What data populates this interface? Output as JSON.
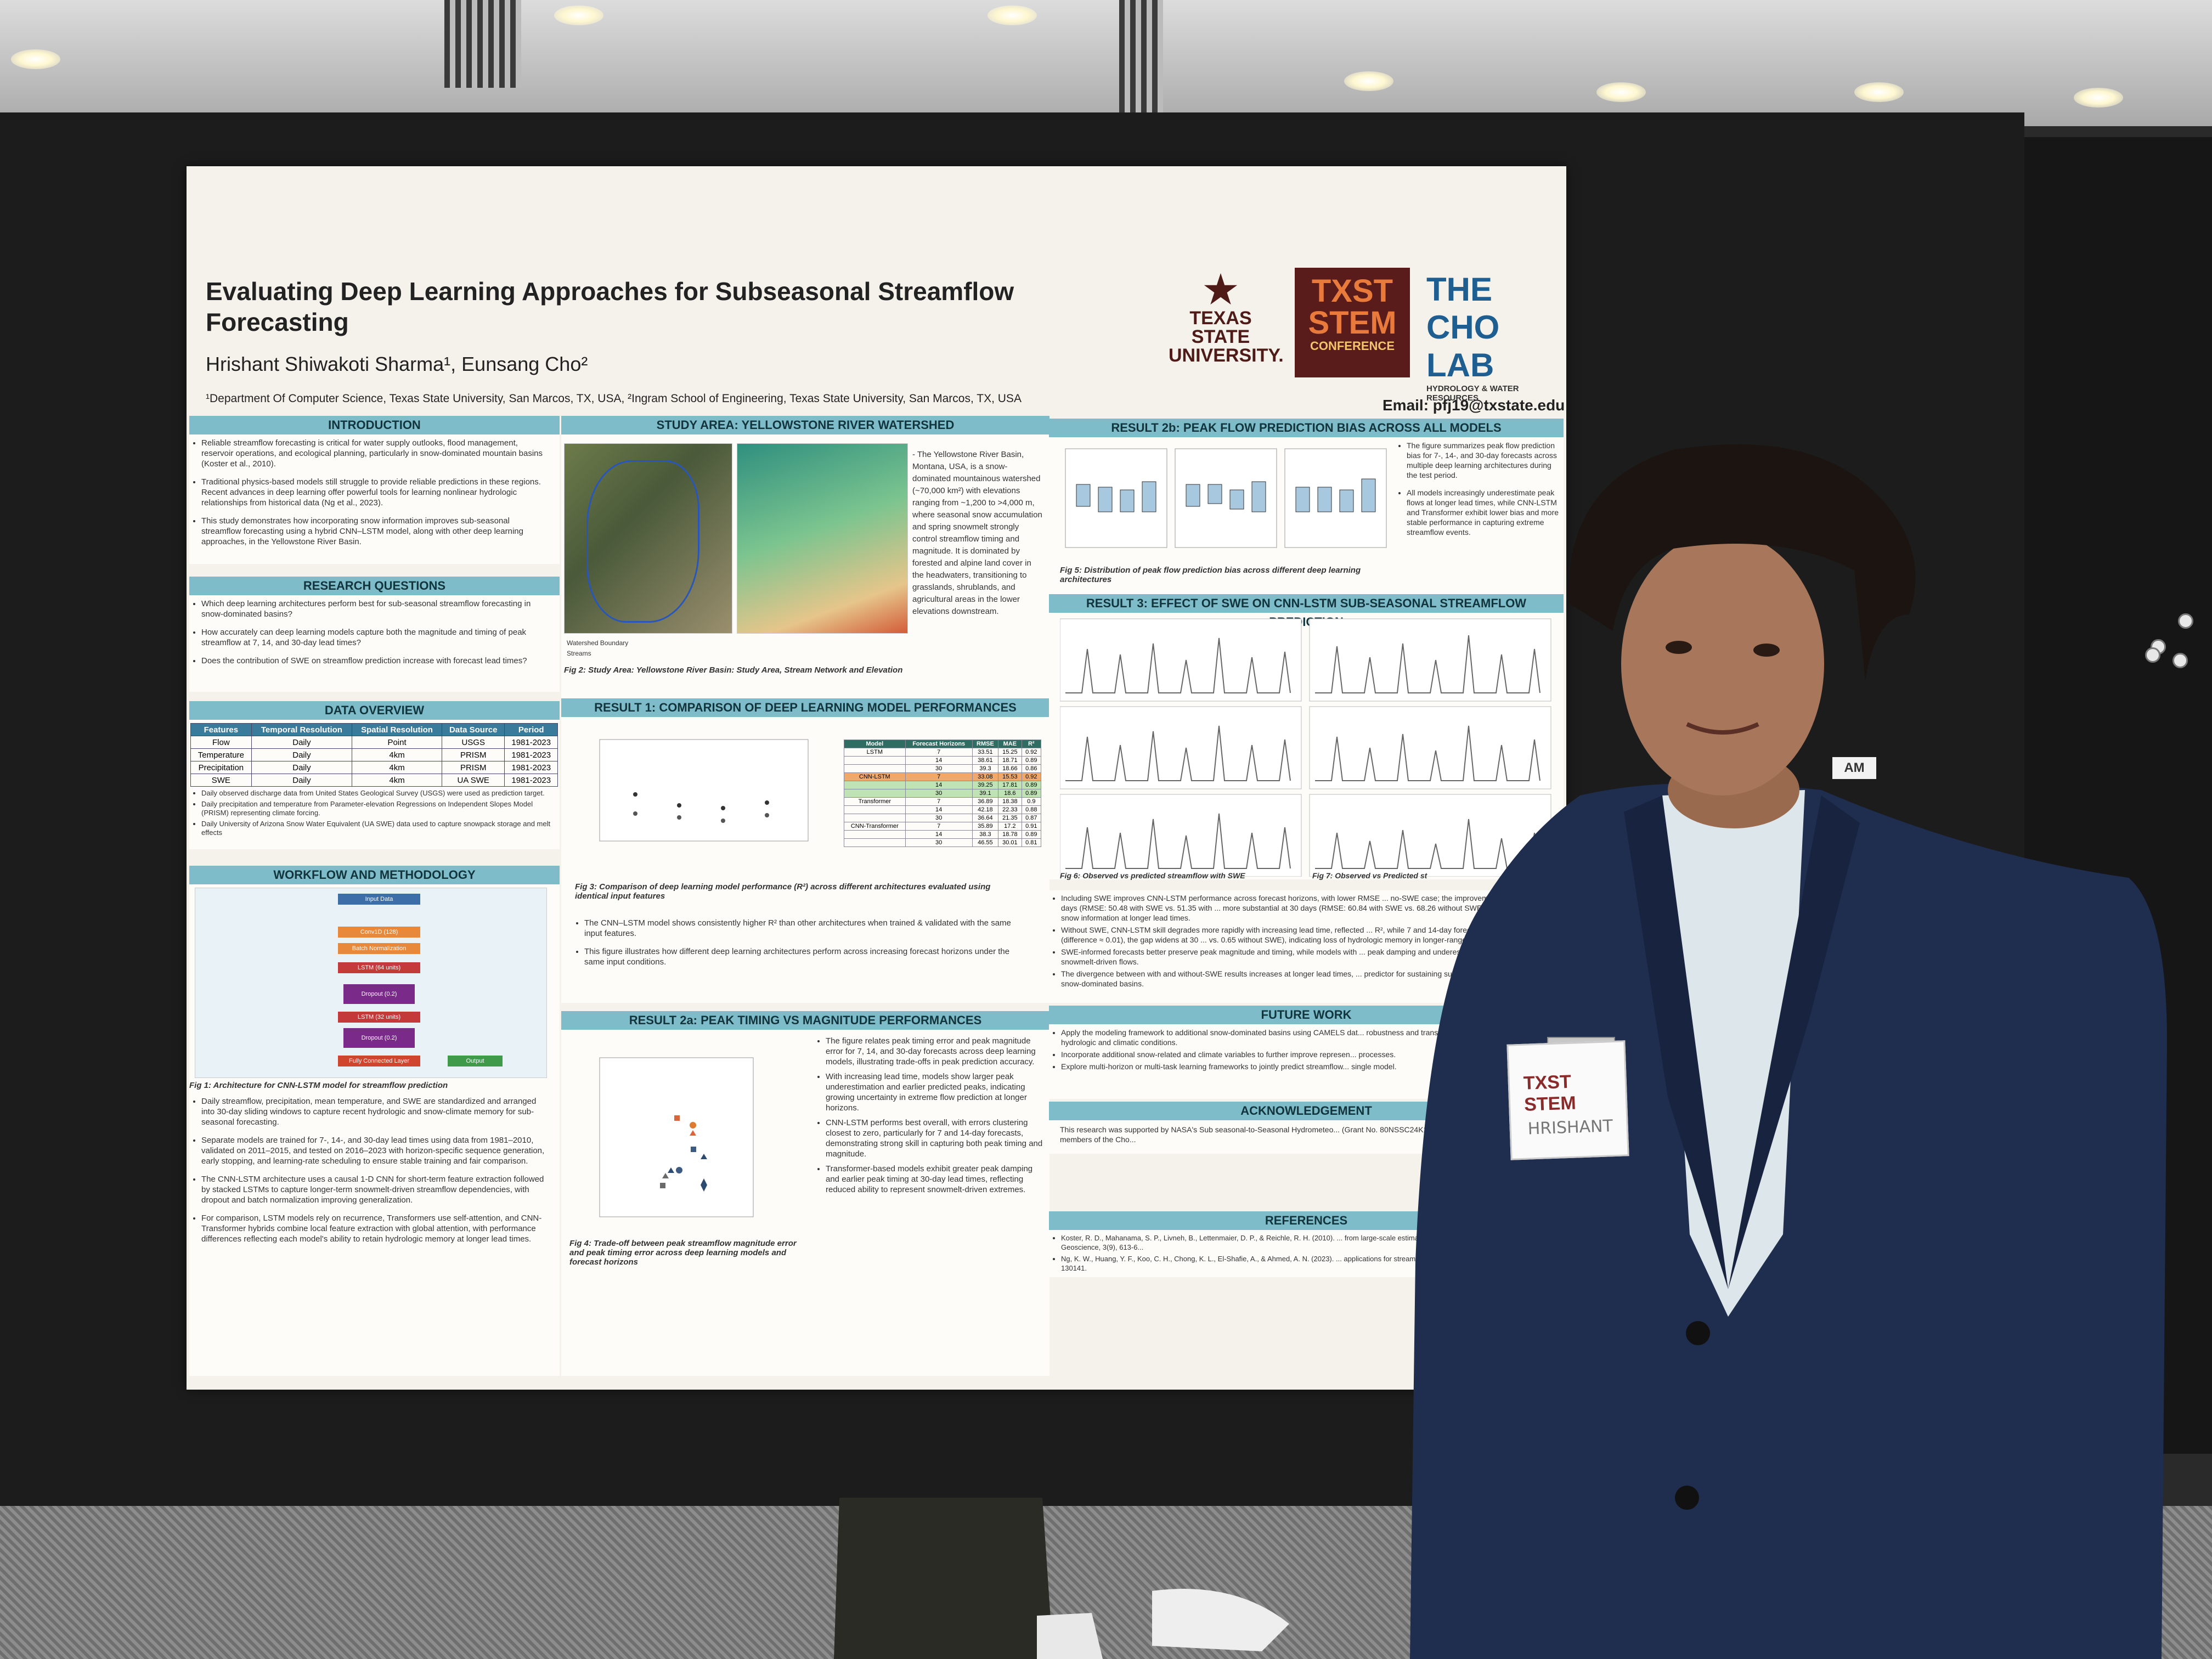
{
  "poster": {
    "title": "Evaluating Deep Learning Approaches for Subseasonal Streamflow Forecasting",
    "authors": "Hrishant Shiwakoti Sharma¹, Eunsang Cho²",
    "affiliations": "¹Department Of Computer Science, Texas State University, San Marcos, TX, USA, ²Ingram School of Engineering, Texas State University, San Marcos, TX, USA",
    "email": "Email: pfj19@txstate.edu",
    "logos": {
      "texas_state": "TEXAS STATE UNIVERSITY.",
      "stem": "TXST STEM",
      "stem_sub": "CONFERENCE",
      "cho_lab": "THE CHO LAB",
      "cho_sub": "HYDROLOGY & WATER RESOURCES"
    },
    "sections": {
      "introduction": {
        "heading": "INTRODUCTION",
        "bullets": [
          "Reliable streamflow forecasting is critical for water supply outlooks, flood management, reservoir operations, and ecological planning, particularly in snow-dominated mountain basins (Koster et al., 2010).",
          "Traditional physics-based models still struggle to provide reliable predictions in these regions. Recent advances in deep learning offer powerful tools for learning nonlinear hydrologic relationships from historical data (Ng et al., 2023).",
          "This study demonstrates how incorporating snow information improves sub-seasonal streamflow forecasting using a hybrid CNN–LSTM model, along with other deep learning approaches, in the Yellowstone River Basin."
        ]
      },
      "research_questions": {
        "heading": "RESEARCH QUESTIONS",
        "bullets": [
          "Which deep learning architectures perform best for sub-seasonal streamflow forecasting in snow-dominated basins?",
          "How accurately can deep learning models capture both the magnitude and timing of peak streamflow at 7, 14, and 30-day lead times?",
          "Does the contribution of SWE on streamflow prediction increase with forecast lead times?"
        ]
      },
      "data_overview": {
        "heading": "DATA OVERVIEW",
        "columns": [
          "Features",
          "Temporal Resolution",
          "Spatial Resolution",
          "Data Source",
          "Period"
        ],
        "rows": [
          [
            "Flow",
            "Daily",
            "Point",
            "USGS",
            "1981-2023"
          ],
          [
            "Temperature",
            "Daily",
            "4km",
            "PRISM",
            "1981-2023"
          ],
          [
            "Precipitation",
            "Daily",
            "4km",
            "PRISM",
            "1981-2023"
          ],
          [
            "SWE",
            "Daily",
            "4km",
            "UA SWE",
            "1981-2023"
          ]
        ],
        "bullets": [
          "Daily observed discharge data from United States Geological Survey (USGS) were used as prediction target.",
          "Daily precipitation and temperature from Parameter-elevation Regressions on Independent Slopes Model (PRISM) representing climate forcing.",
          "Daily University of Arizona Snow Water Equivalent (UA SWE) data used to capture snowpack storage and melt effects"
        ]
      },
      "workflow": {
        "heading": "WORKFLOW AND METHODOLOGY",
        "blocks": [
          "Input Data",
          "Conv1D (128)",
          "Batch Normalization",
          "LSTM (64 units)",
          "Dropout (0.2)",
          "LSTM (32 units)",
          "Dropout (0.2)",
          "Fully Connected Layer",
          "Output"
        ],
        "caption": "Fig 1: Architecture for CNN-LSTM model for streamflow prediction",
        "bullets": [
          "Daily streamflow, precipitation, mean temperature, and SWE are standardized and arranged into 30-day sliding windows to capture recent hydrologic and snow-climate memory for sub-seasonal forecasting.",
          "Separate models are trained for 7-, 14-, and 30-day lead times using data from 1981–2010, validated on 2011–2015, and tested on 2016–2023 with horizon-specific sequence generation, early stopping, and learning-rate scheduling to ensure stable training and fair comparison.",
          "The CNN-LSTM architecture uses a causal 1-D CNN for short-term feature extraction followed by stacked LSTMs to capture longer-term snowmelt-driven streamflow dependencies, with dropout and batch normalization improving generalization.",
          "For comparison, LSTM models rely on recurrence, Transformers use self-attention, and CNN-Transformer hybrids combine local feature extraction with global attention, with performance differences reflecting each model's ability to retain hydrologic memory at longer lead times."
        ]
      },
      "study_area": {
        "heading": "STUDY AREA: YELLOWSTONE RIVER WATERSHED",
        "text": "- The Yellowstone River Basin, Montana, USA, is a snow-dominated mountainous watershed (~70,000 km²) with elevations ranging from ~1,200 to >4,000 m, where seasonal snow accumulation and spring snowmelt strongly control streamflow timing and magnitude. It is dominated by forested and alpine land cover in the headwaters, transitioning to grasslands, shrublands, and agricultural areas in the lower elevations downstream.",
        "legend": [
          "Watershed Boundary",
          "Streams"
        ],
        "caption": "Fig 2: Study Area: Yellowstone River Basin: Study Area, Stream Network and Elevation"
      },
      "result1": {
        "heading": "RESULT 1: COMPARISON OF DEEP LEARNING MODEL PERFORMANCES",
        "caption": "Fig 3: Comparison of deep learning model performance (R²) across different architectures evaluated using identical input features",
        "bullets": [
          "The CNN–LSTM model shows consistently higher R² than other architectures when trained & validated with the same input features.",
          "This figure illustrates how different deep learning architectures perform across increasing forecast horizons under the same input conditions."
        ]
      },
      "result2a": {
        "heading": "RESULT 2a: PEAK TIMING VS MAGNITUDE PERFORMANCES",
        "caption": "Fig 4: Trade-off between peak streamflow magnitude error and peak timing error across deep learning models and forecast horizons",
        "bullets": [
          "The figure relates peak timing error and peak magnitude error for 7, 14, and 30-day forecasts across deep learning models, illustrating trade-offs in peak prediction accuracy.",
          "With increasing lead time, models show larger peak underestimation and earlier predicted peaks, indicating growing uncertainty in extreme flow prediction at longer horizons.",
          "CNN-LSTM performs best overall, with errors clustering closest to zero, particularly for 7 and 14-day forecasts, demonstrating strong skill in capturing both peak timing and magnitude.",
          "Transformer-based models exhibit greater peak damping and earlier peak timing at 30-day lead times, reflecting reduced ability to represent snowmelt-driven extremes."
        ]
      },
      "result2b": {
        "heading": "RESULT 2b: PEAK FLOW PREDICTION BIAS ACROSS ALL MODELS",
        "caption": "Fig 5: Distribution of peak flow prediction bias across different deep learning architectures",
        "bullets": [
          "The figure summarizes peak flow prediction bias for 7-, 14-, and 30-day forecasts across multiple deep learning architectures during the test period.",
          "All models increasingly underestimate peak flows at longer lead times, while CNN-LSTM and Transformer exhibit lower bias and more stable performance in capturing extreme streamflow events."
        ]
      },
      "result3": {
        "heading": "RESULT 3: EFFECT OF SWE ON CNN-LSTM SUB-SEASONAL STREAMFLOW PREDICTION",
        "caption_left": "Fig 6: Observed vs predicted streamflow with SWE",
        "caption_right": "Fig 7: Observed vs Predicted st",
        "bullets": [
          "Including SWE improves CNN-LSTM performance across forecast horizons, with lower RMSE ... no-SWE case; the improvement is modest at 14 days (RMSE: 50.48 with SWE vs. 51.35 with ... more substantial at 30 days (RMSE: 60.84 with SWE vs. 68.26 without SWE), highlighting the ... snow information at longer lead times.",
          "Without SWE, CNN-LSTM skill degrades more rapidly with increasing lead time, reflected ... R², while 7 and 14-day forecasts show similar R² (difference ≈ 0.01), the gap widens at 30 ... vs. 0.65 without SWE), indicating loss of hydrologic memory in longer-range forecasts.",
          "SWE-informed forecasts better preserve peak magnitude and timing, while models with ... peak damping and underestimation of extreme snowmelt-driven flows.",
          "The divergence between with and without-SWE results increases at longer lead times, ... predictor for sustaining sub-seasonal forecast skill in snow-dominated basins."
        ]
      },
      "future_work": {
        "heading": "FUTURE WORK",
        "bullets": [
          "Apply the modeling framework to additional snow-dominated basins using CAMELS dat... robustness and transferability across diverse hydrologic and climatic conditions.",
          "Incorporate additional snow-related and climate variables to further improve represen... processes.",
          "Explore multi-horizon or multi-task learning frameworks to jointly predict streamflow... single model."
        ]
      },
      "acknowledgement": {
        "heading": "ACKNOWLEDGEMENT",
        "text": "This research was supported by NASA's Sub seasonal-to-Seasonal Hydrometeo... (Grant No. 80NSSC24K1278), with feedback from student members of the Cho..."
      },
      "references": {
        "heading": "REFERENCES",
        "items": [
          "Koster, R. D., Mahanama, S. P., Livneh, B., Lettenmaier, D. P., & Reichle, R. H. (2010). ... from large-scale estimates of soil moisture and snow. Nature Geoscience, 3(9), 613-6...",
          "Ng, K. W., Huang, Y. F., Koo, C. H., Chong, K. L., El-Shafie, A., & Ahmed, A. N. (2023). ... applications for streamflow forecasting. Journal of Hydrology, 625, 130141."
        ]
      }
    },
    "results_table": {
      "columns": [
        "Model",
        "Forecast Horizons",
        "RMSE",
        "MAE",
        "R²"
      ],
      "rows": [
        [
          "LSTM",
          "7",
          "33.51",
          "15.25",
          "0.92"
        ],
        [
          "",
          "14",
          "38.61",
          "18.71",
          "0.89"
        ],
        [
          "",
          "30",
          "39.3",
          "18.66",
          "0.86"
        ],
        [
          "CNN-LSTM",
          "7",
          "33.08",
          "15.53",
          "0.92"
        ],
        [
          "",
          "14",
          "39.25",
          "17.81",
          "0.89"
        ],
        [
          "",
          "30",
          "39.1",
          "18.6",
          "0.89"
        ],
        [
          "Transformer",
          "7",
          "36.89",
          "18.38",
          "0.9"
        ],
        [
          "",
          "14",
          "42.18",
          "22.33",
          "0.88"
        ],
        [
          "",
          "30",
          "36.64",
          "21.35",
          "0.87"
        ],
        [
          "CNN-Transformer",
          "7",
          "35.89",
          "17.2",
          "0.91"
        ],
        [
          "",
          "14",
          "38.3",
          "18.78",
          "0.89"
        ],
        [
          "",
          "30",
          "46.55",
          "30.01",
          "0.81"
        ]
      ]
    }
  },
  "badge": {
    "event": "TXST STEM",
    "name": "HRISHANT"
  },
  "board_label": "AM",
  "colors": {
    "header": "#7fbcc9",
    "suit": "#1f2d4e",
    "board": "#1c1c1c",
    "poster": "#f5f2eb",
    "accent": "#e07a2f"
  }
}
